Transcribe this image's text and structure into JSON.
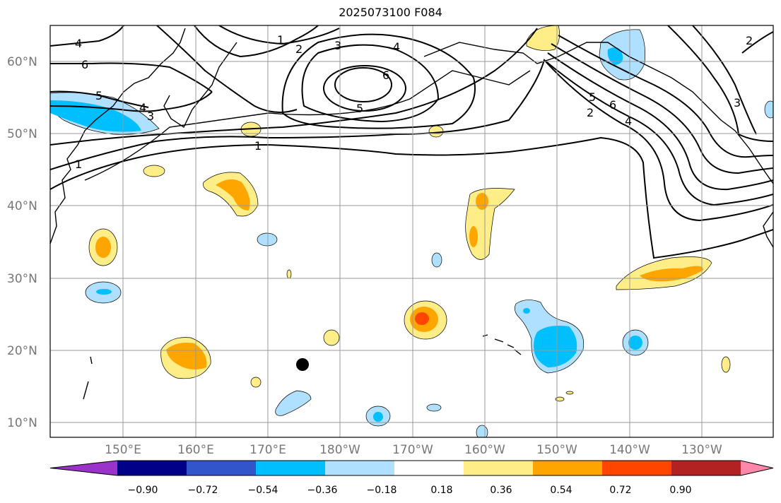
{
  "title": "2025073100 F084",
  "map": {
    "lat_ticks": [
      "10°N",
      "20°N",
      "30°N",
      "40°N",
      "50°N",
      "60°N"
    ],
    "lon_ticks": [
      "150°E",
      "160°E",
      "170°E",
      "180°W",
      "170°W",
      "160°W",
      "150°W",
      "140°W",
      "130°W"
    ],
    "grid": true,
    "contour_labels": [
      "4",
      "6",
      "5",
      "4",
      "3",
      "1",
      "1",
      "2",
      "3",
      "4",
      "6",
      "5",
      "1",
      "5",
      "6",
      "2",
      "4",
      "3",
      "2"
    ],
    "marker": "filled-circle"
  },
  "colorbar": {
    "ticks": [
      "−0.90",
      "−0.72",
      "−0.54",
      "−0.36",
      "−0.18",
      "0.18",
      "0.36",
      "0.54",
      "0.72",
      "0.90"
    ],
    "colors": [
      "#9933cc",
      "#000088",
      "#3355cc",
      "#00bfff",
      "#b0e0ff",
      "#ffffff",
      "#ffee88",
      "#ffa500",
      "#ff4500",
      "#b22222",
      "#ff88aa"
    ]
  }
}
